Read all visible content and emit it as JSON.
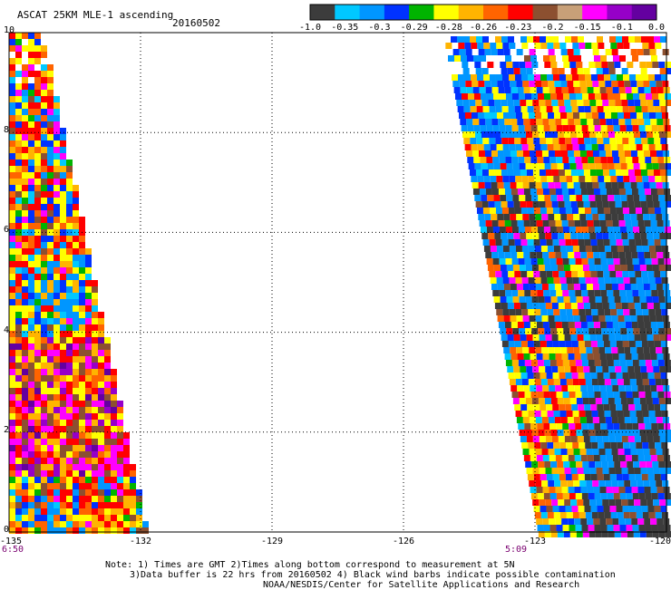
{
  "header": {
    "title": "ASCAT 25KM MLE-1 ascending",
    "date": "20160502"
  },
  "colorbar": {
    "colors": [
      "#3c3c3c",
      "#00c8ff",
      "#0096ff",
      "#0032ff",
      "#00b400",
      "#ffff00",
      "#ffb400",
      "#ff6400",
      "#ff0000",
      "#8c5030",
      "#c8a078",
      "#ff00ff",
      "#9600c8",
      "#6400a0"
    ],
    "labels": [
      "-1.0",
      "-0.35",
      "-0.3",
      "-0.29",
      "-0.28",
      "-0.26",
      "-0.23",
      "-0.2",
      "-0.15",
      "-0.1",
      "0.0"
    ]
  },
  "chart_data": {
    "type": "heatmap",
    "title": "ASCAT 25KM MLE-1 ascending",
    "date": "20160502",
    "x_ticks": [
      "-135",
      "-132",
      "-129",
      "-126",
      "-123",
      "-120"
    ],
    "y_ticks": [
      "0",
      "2",
      "4",
      "6",
      "8",
      "10"
    ],
    "xlim": [
      -135,
      -120
    ],
    "ylim": [
      0,
      10
    ],
    "grid": true,
    "swaths": [
      {
        "time": "6:50",
        "lon_west_edge": -135
      },
      {
        "time": "5:09",
        "lon_west_edge": -123
      }
    ]
  },
  "footer": {
    "note1": "Note: 1) Times are GMT 2)Times along bottom correspond to measurement at 5N",
    "note2": "3)Data buffer is 22 hrs from 20160502 4) Black wind barbs indicate possible contamination",
    "credit": "NOAA/NESDIS/Center for Satellite Applications and Research"
  }
}
